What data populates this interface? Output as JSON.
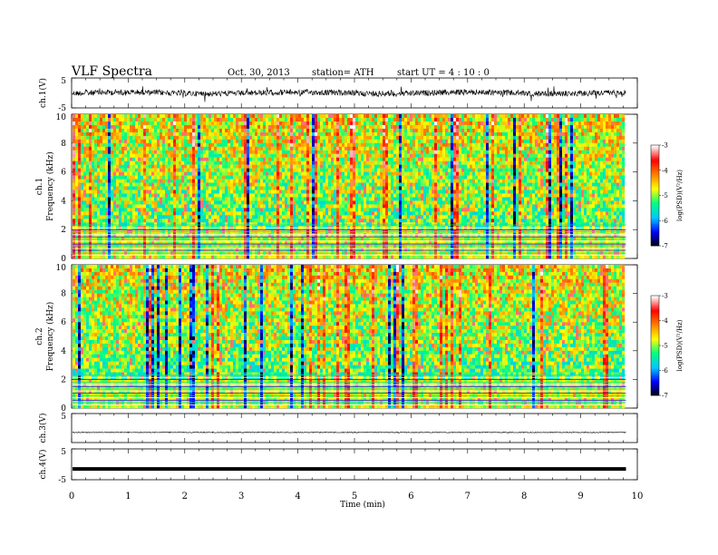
{
  "header": {
    "title": "VLF  Spectra",
    "date": "Oct. 30, 2013",
    "station": "station= ATH",
    "start": "start  UT  =   4  : 10 : 0"
  },
  "chart_data": {
    "type": "heatmap",
    "x_axis": {
      "label": "Time  (min)",
      "min": 0,
      "max": 10,
      "ticks": [
        0,
        1,
        2,
        3,
        4,
        5,
        6,
        7,
        8,
        9,
        10
      ]
    },
    "data_end_min": 9.8,
    "panels": [
      {
        "id": "ch1-waveform",
        "kind": "line",
        "ylabel": "ch.1(V)",
        "ylim": [
          -5,
          5
        ],
        "yticks": [
          5,
          -5
        ],
        "baseline": 0,
        "noise_amplitude": "high"
      },
      {
        "id": "ch1-spectrogram",
        "kind": "heatmap",
        "ylabel_channel": "ch.1",
        "ylabel": "Frequency  (kHz)",
        "ylim": [
          0,
          10
        ],
        "yticks": [
          0,
          2,
          4,
          6,
          8,
          10
        ]
      },
      {
        "id": "ch2-spectrogram",
        "kind": "heatmap",
        "ylabel_channel": "ch.2",
        "ylabel": "Frequency  (kHz)",
        "ylim": [
          0,
          10
        ],
        "yticks": [
          0,
          2,
          4,
          6,
          8,
          10
        ]
      },
      {
        "id": "ch3-waveform",
        "kind": "line",
        "ylabel": "ch.3(V)",
        "ylim": [
          -5,
          5
        ],
        "yticks": [
          5
        ],
        "baseline": -1.5,
        "noise_amplitude": "low"
      },
      {
        "id": "ch4-waveform",
        "kind": "line",
        "ylabel": "ch.4(V)",
        "ylim": [
          -5,
          5
        ],
        "yticks": [
          5,
          -5
        ],
        "baseline": -1.5,
        "noise_amplitude": "flat-thick"
      }
    ],
    "colorbar": {
      "label": "log(PSD)(V²/Hz)",
      "range": [
        -7,
        -3
      ],
      "ticks": [
        -3,
        -4,
        -5,
        -6,
        -7
      ],
      "colors": [
        "#000000",
        "#0000ff",
        "#00c8ff",
        "#00ff80",
        "#ffff00",
        "#ff8000",
        "#ff0000",
        "#ffffff"
      ]
    }
  }
}
